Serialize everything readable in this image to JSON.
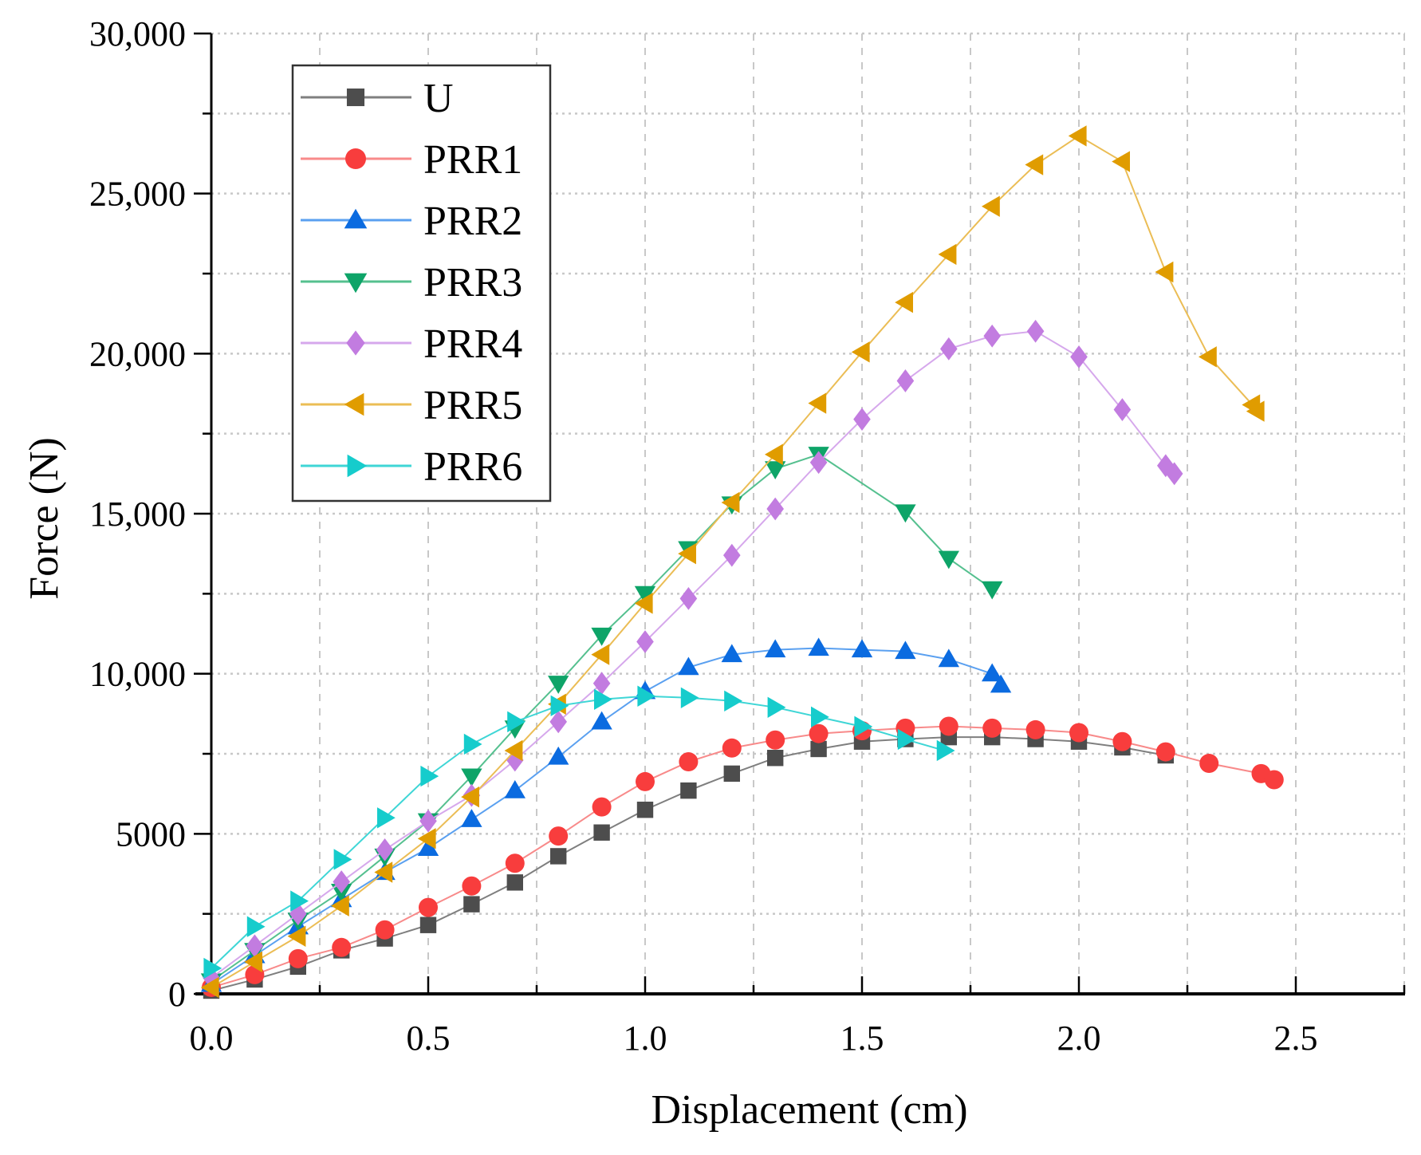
{
  "chart_data": {
    "type": "line",
    "title": "",
    "xlabel": "Displacement (cm)",
    "ylabel": "Force (N)",
    "xlim": [
      0,
      2.75
    ],
    "ylim": [
      0,
      30000
    ],
    "x_ticks": [
      0,
      0.5,
      1.0,
      1.5,
      2.0,
      2.5
    ],
    "x_tick_labels": [
      "0.0",
      "0.5",
      "1.0",
      "1.5",
      "2.0",
      "2.5"
    ],
    "y_ticks": [
      0,
      5000,
      10000,
      15000,
      20000,
      25000,
      30000
    ],
    "y_tick_labels": [
      "0",
      "5000",
      "10,000",
      "15,000",
      "20,000",
      "25,000",
      "30,000"
    ],
    "grid": true,
    "legend_position": "top-left",
    "series": [
      {
        "name": "U",
        "color": "#4d4d4d",
        "line_color": "#7f7f7f",
        "marker": "square",
        "x": [
          0,
          0.1,
          0.2,
          0.3,
          0.4,
          0.5,
          0.6,
          0.7,
          0.8,
          0.9,
          1.0,
          1.1,
          1.2,
          1.3,
          1.4,
          1.5,
          1.6,
          1.7,
          1.8,
          1.9,
          2.0,
          2.1,
          2.2
        ],
        "y": [
          100,
          450,
          850,
          1360,
          1730,
          2150,
          2800,
          3480,
          4300,
          5040,
          5750,
          6350,
          6880,
          7370,
          7650,
          7880,
          7960,
          8020,
          8020,
          7960,
          7880,
          7700,
          7450
        ]
      },
      {
        "name": "PRR1",
        "color": "#f83d3d",
        "line_color": "#f88a8a",
        "marker": "circle",
        "x": [
          0,
          0.1,
          0.2,
          0.3,
          0.4,
          0.5,
          0.6,
          0.7,
          0.8,
          0.9,
          1.0,
          1.1,
          1.2,
          1.3,
          1.4,
          1.5,
          1.6,
          1.7,
          1.8,
          1.9,
          2.0,
          2.1,
          2.2,
          2.3,
          2.42,
          2.45
        ],
        "y": [
          200,
          600,
          1100,
          1450,
          2000,
          2700,
          3370,
          4080,
          4930,
          5840,
          6630,
          7250,
          7680,
          7930,
          8130,
          8220,
          8300,
          8360,
          8300,
          8250,
          8160,
          7880,
          7560,
          7200,
          6880,
          6690
        ]
      },
      {
        "name": "PRR2",
        "color": "#0b6be0",
        "line_color": "#5aa0f0",
        "marker": "triangle-up",
        "x": [
          0,
          0.1,
          0.2,
          0.3,
          0.4,
          0.5,
          0.6,
          0.7,
          0.8,
          0.9,
          1.0,
          1.1,
          1.2,
          1.3,
          1.4,
          1.5,
          1.6,
          1.7,
          1.8,
          1.82
        ],
        "y": [
          300,
          1200,
          2100,
          2950,
          3800,
          4550,
          5450,
          6350,
          7400,
          8500,
          9450,
          10200,
          10600,
          10750,
          10800,
          10750,
          10700,
          10450,
          10000,
          9650
        ]
      },
      {
        "name": "PRR3",
        "color": "#0ea468",
        "line_color": "#55c08f",
        "marker": "triangle-down",
        "x": [
          0,
          0.1,
          0.2,
          0.3,
          0.4,
          0.5,
          0.6,
          0.7,
          0.8,
          0.9,
          1.0,
          1.1,
          1.2,
          1.3,
          1.4,
          1.6,
          1.7,
          1.8
        ],
        "y": [
          400,
          1350,
          2300,
          3200,
          4300,
          5400,
          6800,
          8300,
          9700,
          11200,
          12500,
          13900,
          15300,
          16400,
          16850,
          15050,
          13600,
          12650
        ]
      },
      {
        "name": "PRR4",
        "color": "#c27ce0",
        "line_color": "#d6a8ec",
        "marker": "diamond",
        "x": [
          0,
          0.1,
          0.2,
          0.3,
          0.4,
          0.5,
          0.6,
          0.7,
          0.8,
          0.9,
          1.0,
          1.1,
          1.2,
          1.3,
          1.4,
          1.5,
          1.6,
          1.7,
          1.8,
          1.9,
          2.0,
          2.1,
          2.2,
          2.22
        ],
        "y": [
          500,
          1500,
          2500,
          3500,
          4500,
          5400,
          6200,
          7300,
          8500,
          9700,
          11000,
          12350,
          13700,
          15150,
          16600,
          17950,
          19150,
          20150,
          20550,
          20700,
          19900,
          18250,
          16500,
          16250
        ]
      },
      {
        "name": "PRR5",
        "color": "#e09c00",
        "line_color": "#ebbd55",
        "marker": "triangle-left",
        "x": [
          0,
          0.1,
          0.2,
          0.3,
          0.4,
          0.5,
          0.6,
          0.7,
          0.8,
          0.9,
          1.0,
          1.1,
          1.2,
          1.3,
          1.4,
          1.5,
          1.6,
          1.7,
          1.8,
          1.9,
          2.0,
          2.1,
          2.2,
          2.3,
          2.4,
          2.41
        ],
        "y": [
          200,
          1000,
          1800,
          2750,
          3800,
          4850,
          6150,
          7600,
          9050,
          10600,
          12200,
          13750,
          15350,
          16850,
          18450,
          20050,
          21600,
          23100,
          24600,
          25900,
          26800,
          26000,
          22550,
          19900,
          18400,
          18200
        ]
      },
      {
        "name": "PRR6",
        "color": "#16cccc",
        "line_color": "#3fd6d6",
        "marker": "triangle-right",
        "x": [
          0,
          0.1,
          0.2,
          0.3,
          0.4,
          0.5,
          0.6,
          0.7,
          0.8,
          0.9,
          1.0,
          1.1,
          1.2,
          1.3,
          1.4,
          1.5,
          1.6,
          1.69
        ],
        "y": [
          800,
          2100,
          2900,
          4200,
          5500,
          6800,
          7800,
          8500,
          9000,
          9200,
          9300,
          9250,
          9150,
          8950,
          8650,
          8350,
          7950,
          7600
        ]
      }
    ]
  }
}
